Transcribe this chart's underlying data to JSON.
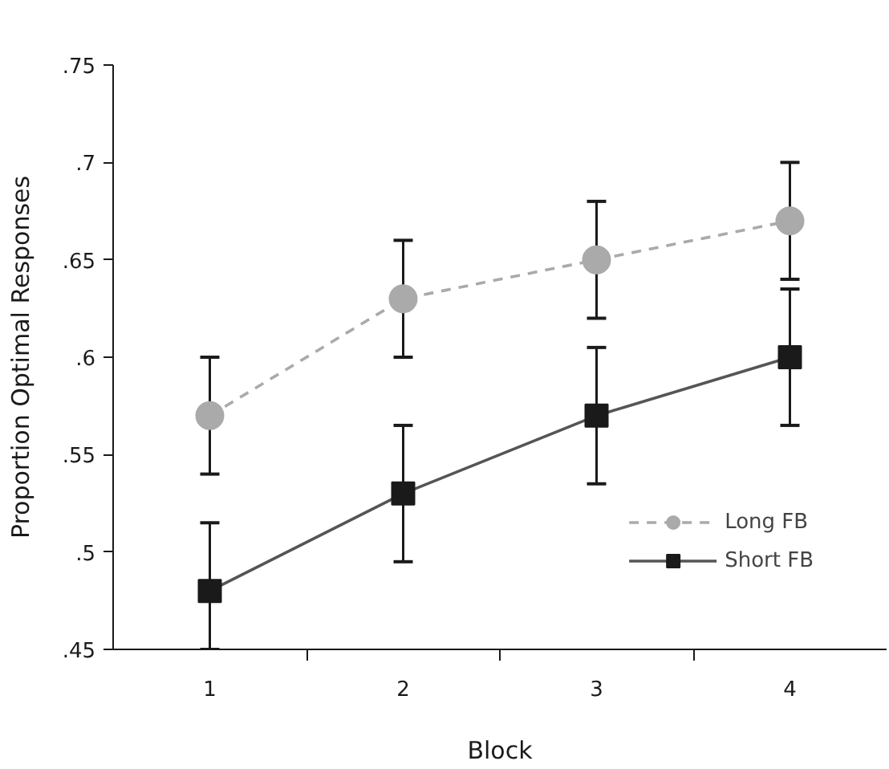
{
  "chart_data": {
    "type": "line",
    "xlabel": "Block",
    "ylabel": "Proportion Optimal Responses",
    "categories": [
      "1",
      "2",
      "3",
      "4"
    ],
    "series": [
      {
        "name": "Long FB",
        "color": "#aaaaaa",
        "marker": "circle",
        "line_style": "dashed",
        "values": [
          0.57,
          0.63,
          0.65,
          0.67
        ],
        "errors": [
          0.03,
          0.03,
          0.03,
          0.03
        ]
      },
      {
        "name": "Short FB",
        "color": "#1a1a1a",
        "marker": "square",
        "line_style": "solid",
        "values": [
          0.48,
          0.53,
          0.57,
          0.6
        ],
        "errors": [
          [
            0.45,
            0.515
          ],
          0.035,
          0.035,
          0.035
        ]
      }
    ],
    "ylim": [
      0.45,
      0.75
    ],
    "yticks": [
      {
        "value": 0.45,
        "label": ".45"
      },
      {
        "value": 0.5,
        "label": ".5"
      },
      {
        "value": 0.55,
        "label": ".55"
      },
      {
        "value": 0.6,
        "label": ".6"
      },
      {
        "value": 0.65,
        "label": ".65"
      },
      {
        "value": 0.7,
        "label": ".7"
      },
      {
        "value": 0.75,
        "label": ".75"
      }
    ],
    "grid": false,
    "legend": "bottom right"
  }
}
